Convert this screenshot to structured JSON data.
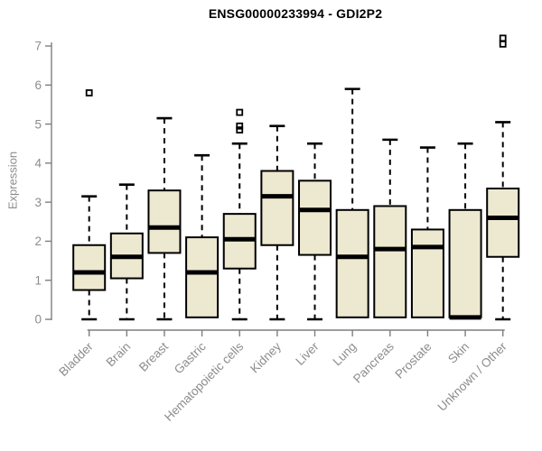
{
  "chart_data": {
    "type": "boxplot",
    "title": "ENSG00000233994 - GDI2P2",
    "xlabel": "",
    "ylabel": "Expression",
    "ylim": [
      0,
      7
    ],
    "yticks": [
      0,
      1,
      2,
      3,
      4,
      5,
      6,
      7
    ],
    "grid": false,
    "legend": false,
    "categories": [
      "Bladder",
      "Brain",
      "Breast",
      "Gastric",
      "Hematopoietic cells",
      "Kidney",
      "Liver",
      "Lung",
      "Pancreas",
      "Prostate",
      "Skin",
      "Unknown / Other"
    ],
    "boxes": [
      {
        "category": "Bladder",
        "whisker_low": 0,
        "q1": 0.75,
        "median": 1.2,
        "q3": 1.9,
        "whisker_high": 3.15,
        "outliers": [
          5.8
        ]
      },
      {
        "category": "Brain",
        "whisker_low": 0,
        "q1": 1.05,
        "median": 1.6,
        "q3": 2.2,
        "whisker_high": 3.45,
        "outliers": []
      },
      {
        "category": "Breast",
        "whisker_low": 0,
        "q1": 1.7,
        "median": 2.35,
        "q3": 3.3,
        "whisker_high": 5.15,
        "outliers": []
      },
      {
        "category": "Gastric",
        "whisker_low": 0.05,
        "q1": 0.05,
        "median": 1.2,
        "q3": 2.1,
        "whisker_high": 4.2,
        "outliers": []
      },
      {
        "category": "Hematopoietic cells",
        "whisker_low": 0,
        "q1": 1.3,
        "median": 2.05,
        "q3": 2.7,
        "whisker_high": 4.5,
        "outliers": [
          4.85,
          4.95,
          5.3
        ]
      },
      {
        "category": "Kidney",
        "whisker_low": 0,
        "q1": 1.9,
        "median": 3.15,
        "q3": 3.8,
        "whisker_high": 4.95,
        "outliers": []
      },
      {
        "category": "Liver",
        "whisker_low": 0,
        "q1": 1.65,
        "median": 2.8,
        "q3": 3.55,
        "whisker_high": 4.5,
        "outliers": []
      },
      {
        "category": "Lung",
        "whisker_low": 0.05,
        "q1": 0.05,
        "median": 1.6,
        "q3": 2.8,
        "whisker_high": 5.9,
        "outliers": []
      },
      {
        "category": "Pancreas",
        "whisker_low": 0.05,
        "q1": 0.05,
        "median": 1.8,
        "q3": 2.9,
        "whisker_high": 4.6,
        "outliers": []
      },
      {
        "category": "Prostate",
        "whisker_low": 0.05,
        "q1": 0.05,
        "median": 1.85,
        "q3": 2.3,
        "whisker_high": 4.4,
        "outliers": []
      },
      {
        "category": "Skin",
        "whisker_low": 0.05,
        "q1": 0.05,
        "median": 0.05,
        "q3": 2.8,
        "whisker_high": 4.5,
        "outliers": []
      },
      {
        "category": "Unknown / Other",
        "whisker_low": 0,
        "q1": 1.6,
        "median": 2.6,
        "q3": 3.35,
        "whisker_high": 5.05,
        "outliers": [
          7.05,
          7.2
        ]
      }
    ]
  },
  "colors": {
    "box_fill": "#EDE8D0",
    "box_stroke": "#000000",
    "median": "#000000",
    "whisker": "#000000",
    "axis": "#7F7F7F",
    "axis_text": "#8C8C8C",
    "title_text": "#000000",
    "background": "#FFFFFF"
  }
}
